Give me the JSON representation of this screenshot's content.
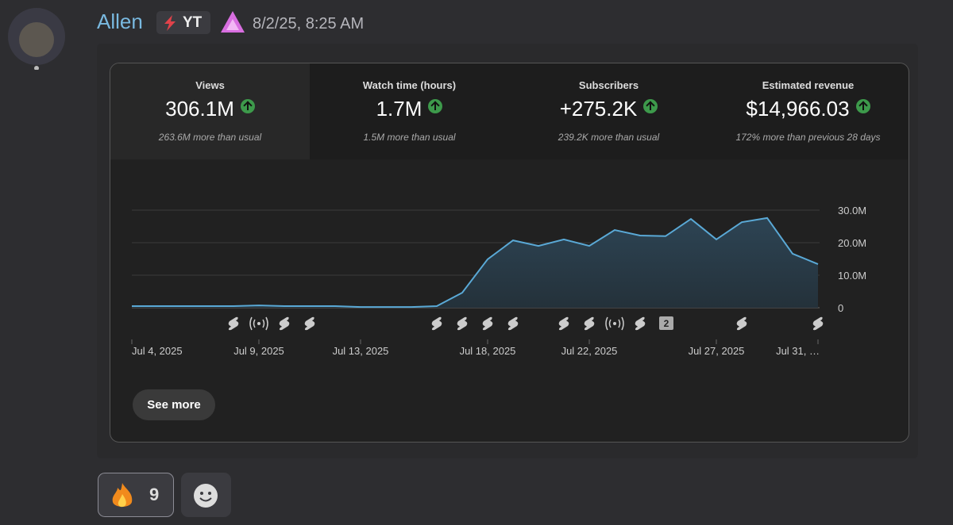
{
  "message": {
    "author": "Allen",
    "badge": "YT",
    "timestamp": "8/2/25, 8:25 AM"
  },
  "stats": [
    {
      "label": "Views",
      "value": "306.1M",
      "note": "263.6M more than usual"
    },
    {
      "label": "Watch time (hours)",
      "value": "1.7M",
      "note": "1.5M more than usual"
    },
    {
      "label": "Subscribers",
      "value": "+275.2K",
      "note": "239.2K more than usual"
    },
    {
      "label": "Estimated revenue",
      "value": "$14,966.03",
      "note": "172% more than previous 28 days"
    }
  ],
  "chart_data": {
    "type": "area",
    "categories": [
      "Jul 4, 2025",
      null,
      null,
      null,
      null,
      "Jul 9, 2025",
      null,
      null,
      null,
      "Jul 13, 2025",
      null,
      null,
      null,
      null,
      "Jul 18, 2025",
      null,
      null,
      null,
      "Jul 22, 2025",
      null,
      null,
      null,
      null,
      "Jul 27, 2025",
      null,
      null,
      null,
      "Jul 31, …"
    ],
    "values": [
      500000,
      500000,
      500000,
      500000,
      500000,
      700000,
      500000,
      500000,
      500000,
      200000,
      200000,
      200000,
      500000,
      4600000,
      14900000,
      20700000,
      19000000,
      21000000,
      19000000,
      23900000,
      22200000,
      22000000,
      27300000,
      21000000,
      26300000,
      27600000,
      16600000,
      13400000
    ],
    "color": "#5aa9d6",
    "ylim": [
      0,
      30000000
    ],
    "yticks": [
      0,
      {
        "value": 10000000,
        "label": "10.0M"
      },
      {
        "value": 20000000,
        "label": "20.0M"
      },
      {
        "value": 30000000,
        "label": "30.0M"
      }
    ],
    "grid": true,
    "annotations": [
      "2"
    ]
  },
  "button": "See more",
  "reaction": {
    "count": "9"
  }
}
